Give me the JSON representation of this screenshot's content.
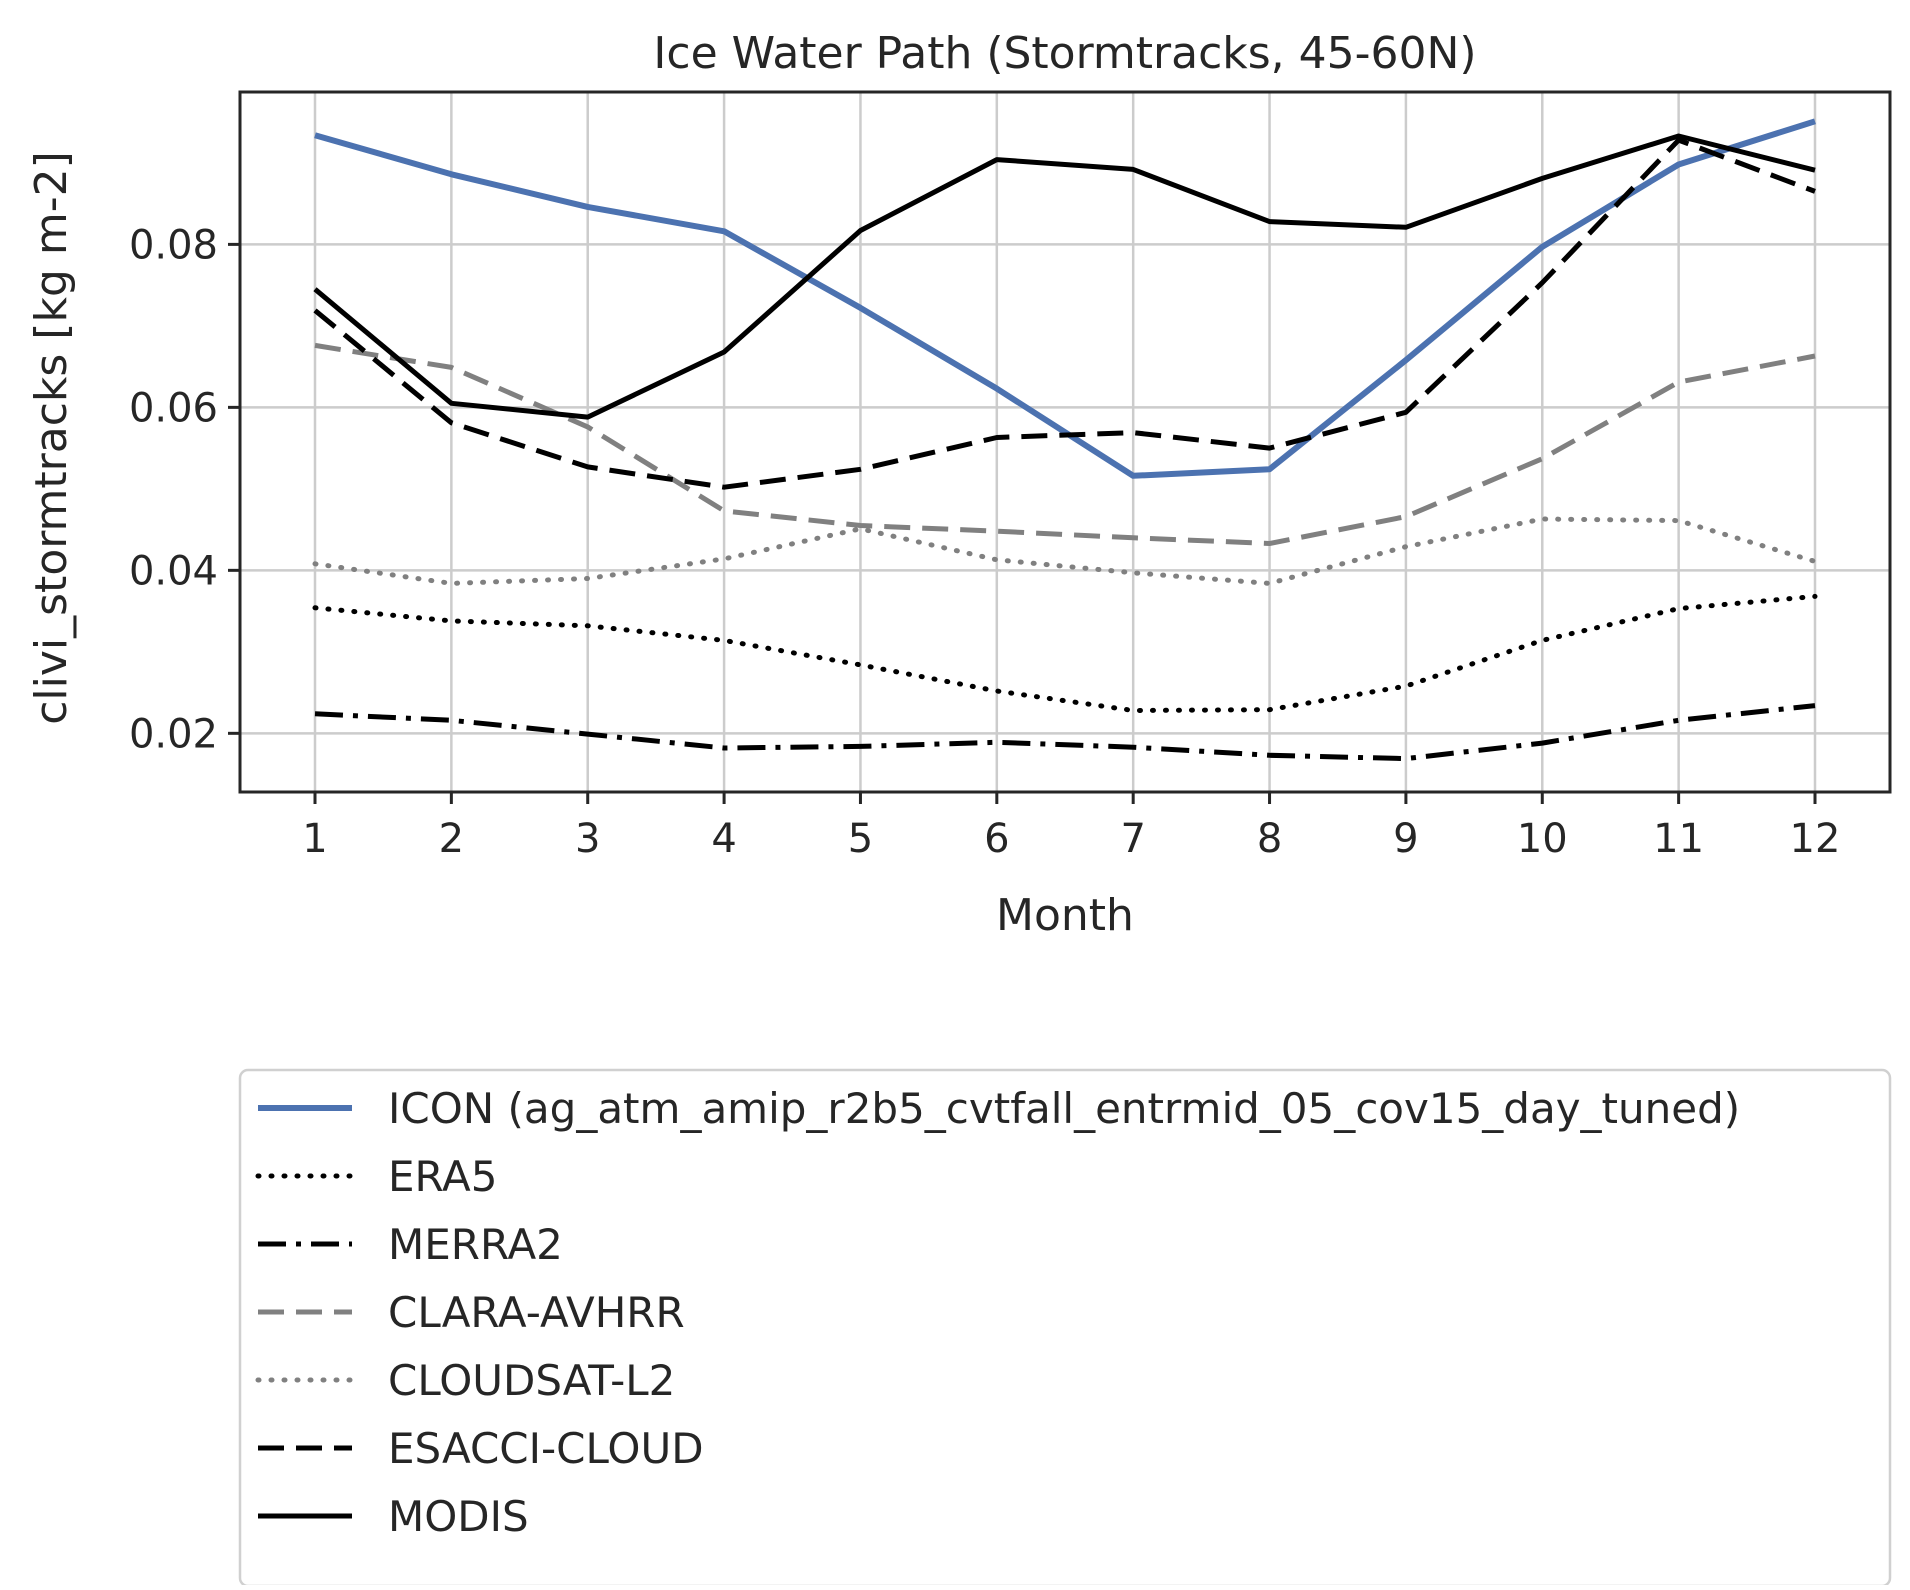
{
  "chart_data": {
    "type": "line",
    "title": "Ice Water Path (Stormtracks, 45-60N)",
    "xlabel": "Month",
    "ylabel": "clivi_stormtracks [kg m-2]",
    "x": [
      1,
      2,
      3,
      4,
      5,
      6,
      7,
      8,
      9,
      10,
      11,
      12
    ],
    "xticks": [
      "1",
      "2",
      "3",
      "4",
      "5",
      "6",
      "7",
      "8",
      "9",
      "10",
      "11",
      "12"
    ],
    "yticks": [
      "0.02",
      "0.04",
      "0.06",
      "0.08"
    ],
    "ytick_values": [
      0.02,
      0.04,
      0.06,
      0.08
    ],
    "xlim": [
      0.45,
      12.55
    ],
    "ylim": [
      0.0128,
      0.0987
    ],
    "grid": true,
    "legend_position": "below",
    "series": [
      {
        "name": "ICON (ag_atm_amip_r2b5_cvtfall_entrmid_05_cov15_day_tuned)",
        "color": "#4c72b0",
        "style": "solid",
        "width": 6,
        "values": [
          0.0934,
          0.0886,
          0.0846,
          0.0816,
          0.0722,
          0.0623,
          0.0516,
          0.0524,
          0.0658,
          0.0797,
          0.0898,
          0.0951
        ]
      },
      {
        "name": "ERA5",
        "color": "#000000",
        "style": "dotted",
        "width": 5,
        "values": [
          0.0354,
          0.0338,
          0.0332,
          0.0314,
          0.0284,
          0.0252,
          0.0228,
          0.0229,
          0.0258,
          0.0314,
          0.0353,
          0.0368
        ]
      },
      {
        "name": "MERRA2",
        "color": "#000000",
        "style": "dashdot",
        "width": 5,
        "values": [
          0.0224,
          0.0216,
          0.0199,
          0.0182,
          0.0184,
          0.0189,
          0.0183,
          0.0173,
          0.0169,
          0.0188,
          0.0216,
          0.0234
        ]
      },
      {
        "name": "CLARA-AVHRR",
        "color": "#808080",
        "style": "dashed",
        "width": 5,
        "values": [
          0.0676,
          0.0649,
          0.0576,
          0.0473,
          0.0455,
          0.0448,
          0.044,
          0.0433,
          0.0466,
          0.0537,
          0.0631,
          0.0663
        ]
      },
      {
        "name": "CLOUDSAT-L2",
        "color": "#808080",
        "style": "dotted",
        "width": 5,
        "values": [
          0.0408,
          0.0384,
          0.039,
          0.0414,
          0.0451,
          0.0413,
          0.0397,
          0.0384,
          0.0429,
          0.0463,
          0.0461,
          0.0411
        ]
      },
      {
        "name": "ESACCI-CLOUD",
        "color": "#000000",
        "style": "dashed",
        "width": 5,
        "values": [
          0.0719,
          0.0581,
          0.0527,
          0.0502,
          0.0524,
          0.0563,
          0.0569,
          0.055,
          0.0594,
          0.0753,
          0.0928,
          0.0865
        ]
      },
      {
        "name": "MODIS",
        "color": "#000000",
        "style": "solid",
        "width": 5,
        "values": [
          0.0745,
          0.0605,
          0.0588,
          0.0668,
          0.0817,
          0.0904,
          0.0892,
          0.0828,
          0.0821,
          0.0881,
          0.0933,
          0.0891
        ]
      }
    ]
  }
}
